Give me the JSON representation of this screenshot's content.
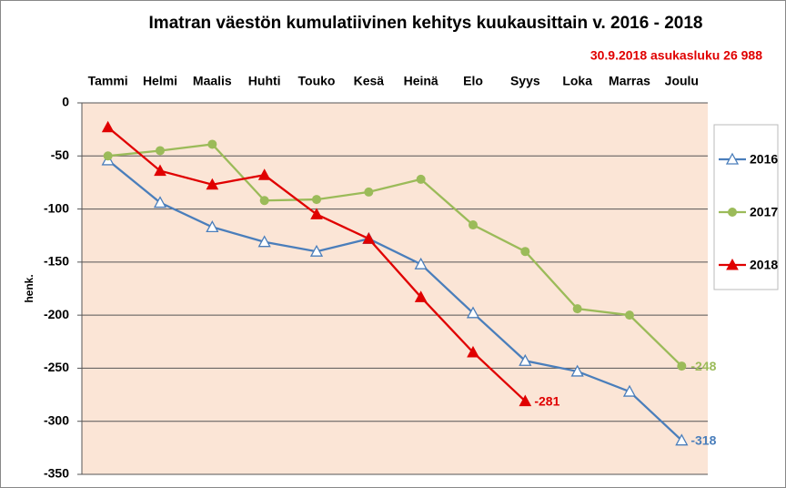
{
  "chart_data": {
    "type": "line",
    "title": "Imatran väestön kumulatiivinen kehitys kuukausittain v. 2016 - 2018",
    "annotation": "30.9.2018 asukasluku 26 988",
    "ylabel": "henk.",
    "categories": [
      "Tammi",
      "Helmi",
      "Maalis",
      "Huhti",
      "Touko",
      "Kesä",
      "Heinä",
      "Elo",
      "Syys",
      "Loka",
      "Marras",
      "Joulu"
    ],
    "series": [
      {
        "name": "2016",
        "color": "#4a7ebb",
        "marker": "triangle-open",
        "values": [
          -54,
          -94,
          -117,
          -131,
          -140,
          -128,
          -152,
          -198,
          -243,
          -253,
          -272,
          -318
        ]
      },
      {
        "name": "2017",
        "color": "#9bbb59",
        "marker": "circle",
        "values": [
          -50,
          -45,
          -39,
          -92,
          -91,
          -84,
          -72,
          -115,
          -140,
          -194,
          -200,
          -248
        ]
      },
      {
        "name": "2018",
        "color": "#e00000",
        "marker": "triangle",
        "values": [
          -23,
          -64,
          -77,
          -68,
          -105,
          -128,
          -183,
          -235,
          -281,
          null,
          null,
          null
        ]
      }
    ],
    "ylim": [
      -350,
      0
    ],
    "yticks": [
      0,
      -50,
      -100,
      -150,
      -200,
      -250,
      -300,
      -350
    ],
    "grid": true,
    "legend": "right"
  }
}
